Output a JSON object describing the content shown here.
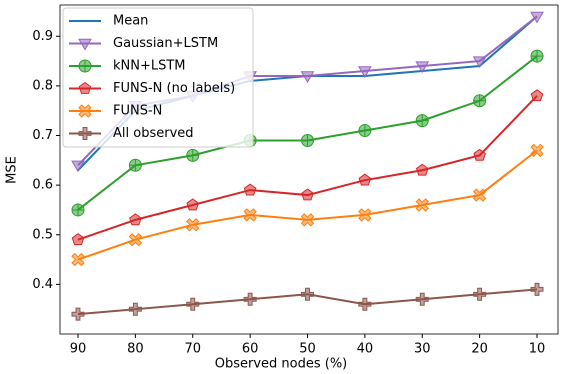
{
  "chart_data": {
    "type": "line",
    "xlabel": "Observed nodes (%)",
    "ylabel": "MSE",
    "categories": [
      "90",
      "80",
      "70",
      "60",
      "50",
      "40",
      "30",
      "20",
      "10"
    ],
    "ylim": [
      0.3,
      0.963
    ],
    "yticks": [
      0.4,
      0.5,
      0.6,
      0.7,
      0.8,
      0.9
    ],
    "legend": "upper left",
    "grid": false,
    "series": [
      {
        "name": "Mean",
        "color": "#1f77b4",
        "values": [
          0.63,
          0.75,
          0.78,
          0.81,
          0.82,
          0.82,
          0.83,
          0.84,
          0.94
        ]
      },
      {
        "name": "Gaussian+LSTM",
        "color": "#9467bd",
        "marker": "triangle-down",
        "values": [
          0.64,
          0.76,
          0.78,
          0.82,
          0.82,
          0.83,
          0.84,
          0.85,
          0.94
        ]
      },
      {
        "name": "kNN+LSTM",
        "color": "#2ca02c",
        "marker": "circle-plus",
        "values": [
          0.55,
          0.64,
          0.66,
          0.69,
          0.69,
          0.71,
          0.73,
          0.77,
          0.86
        ]
      },
      {
        "name": "FUNS-N (no labels)",
        "color": "#d62728",
        "marker": "pentagon",
        "values": [
          0.49,
          0.53,
          0.56,
          0.59,
          0.58,
          0.61,
          0.63,
          0.66,
          0.78
        ]
      },
      {
        "name": "FUNS-N",
        "color": "#ff7f0e",
        "marker": "x",
        "values": [
          0.45,
          0.49,
          0.52,
          0.54,
          0.53,
          0.54,
          0.56,
          0.58,
          0.67
        ]
      },
      {
        "name": "All observed",
        "color": "#8c564b",
        "marker": "plus",
        "values": [
          0.34,
          0.35,
          0.36,
          0.37,
          0.38,
          0.36,
          0.37,
          0.38,
          0.39
        ]
      }
    ]
  }
}
